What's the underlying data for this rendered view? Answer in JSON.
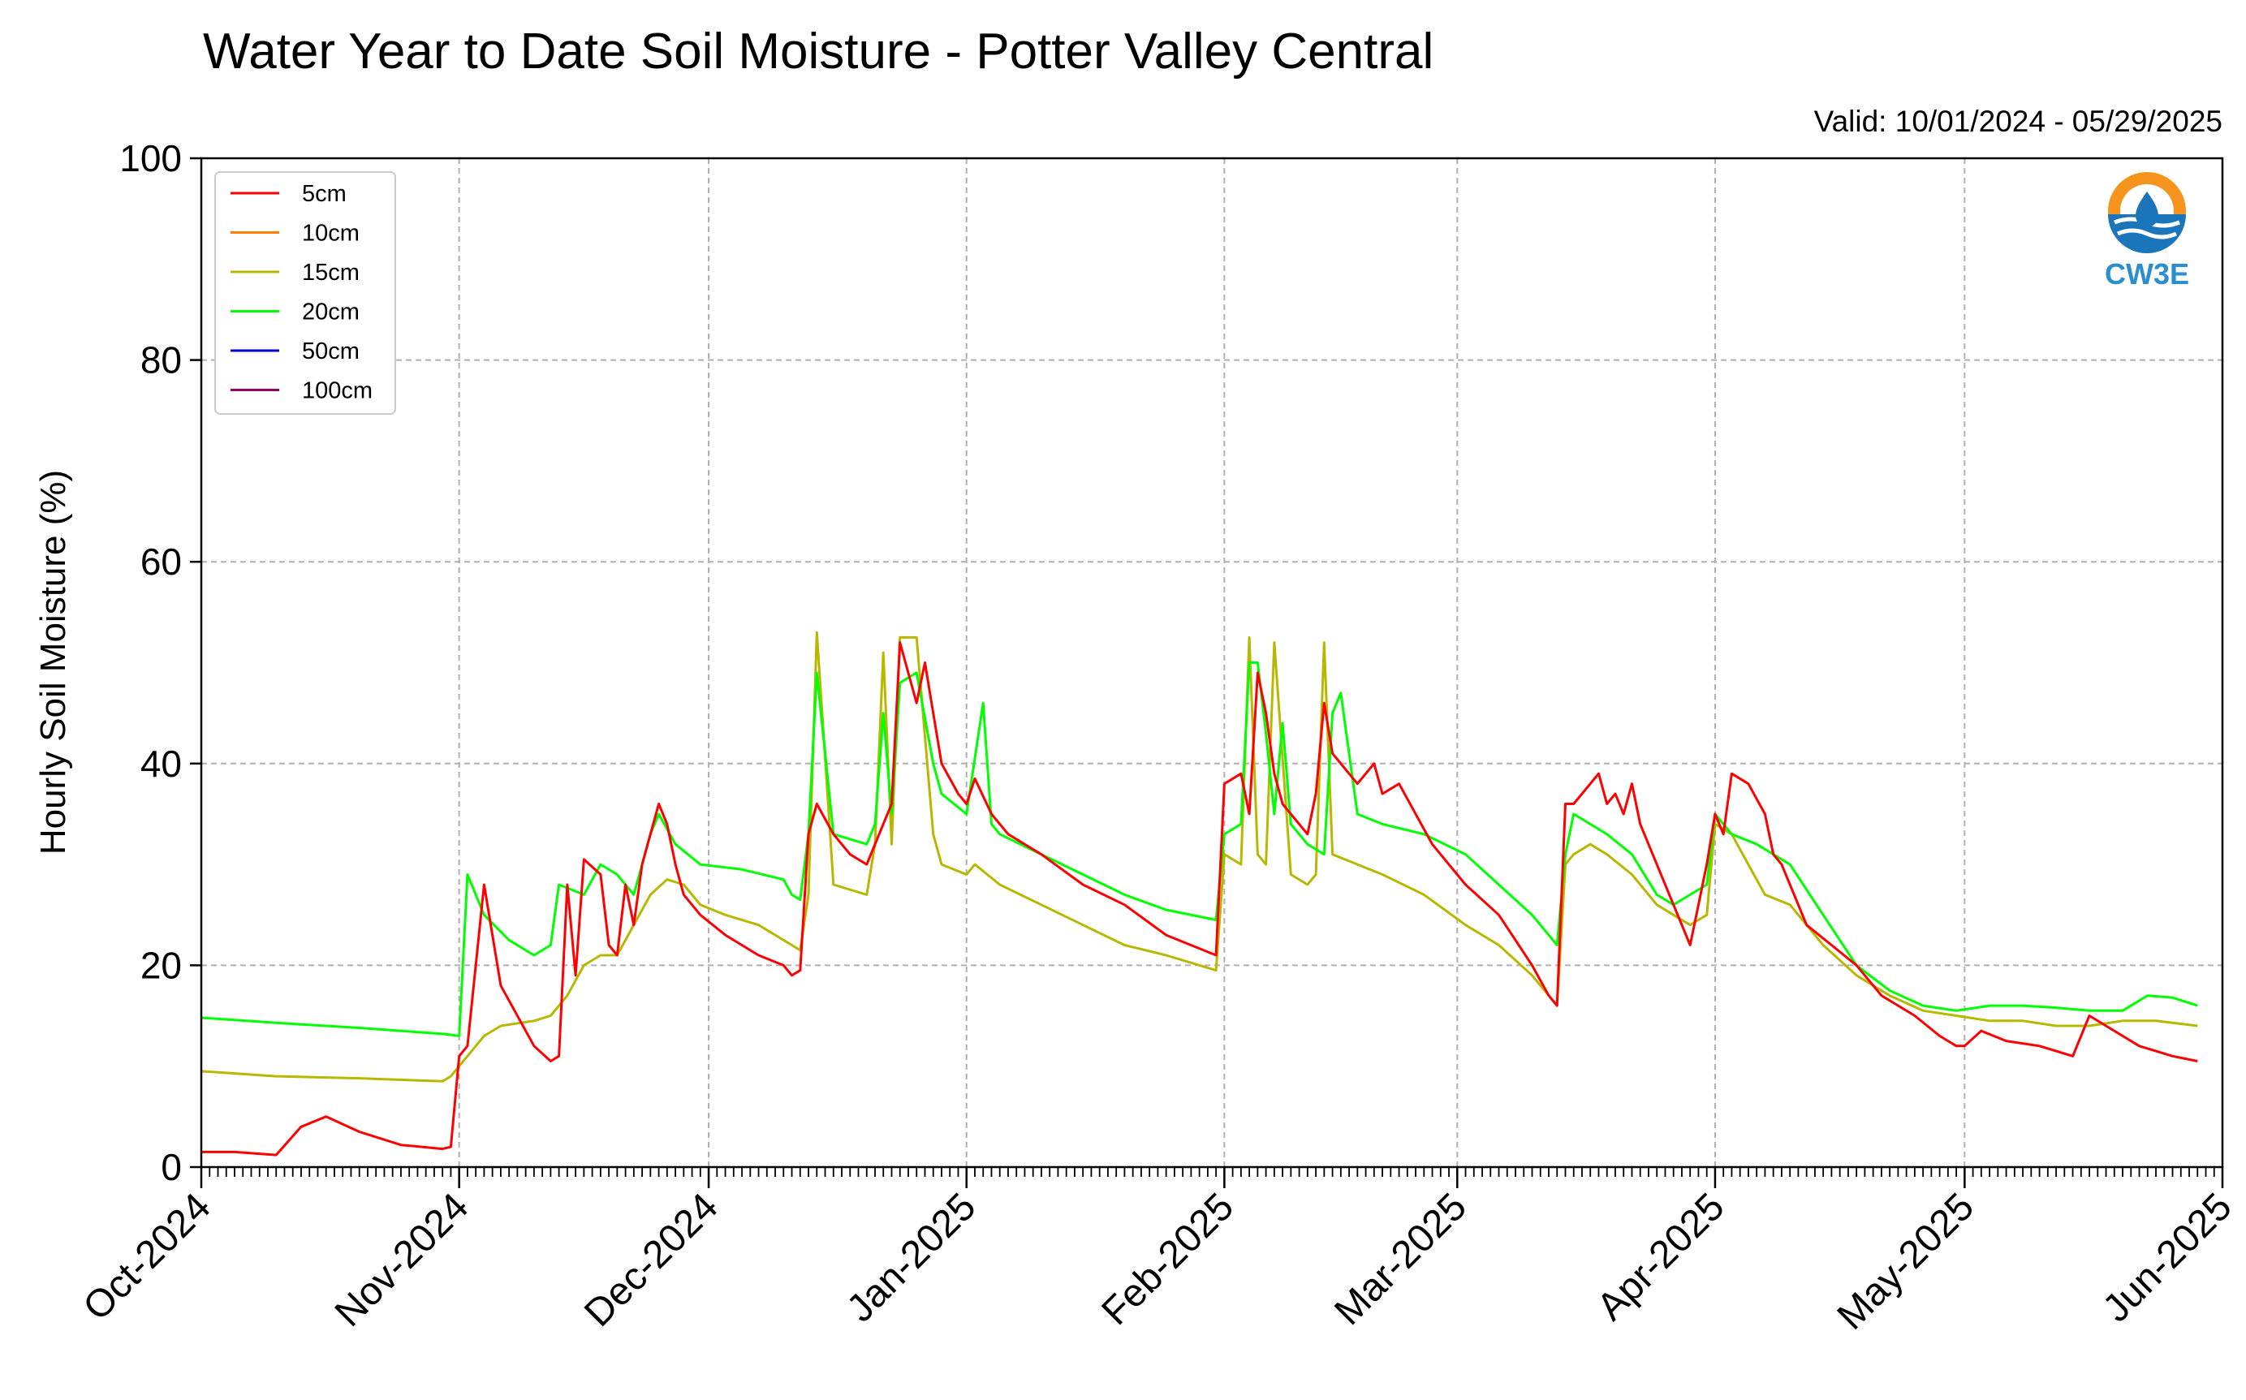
{
  "chart_data": {
    "type": "line",
    "title": "Water Year to Date Soil Moisture - Potter Valley Central",
    "subtitle": "Valid: 10/01/2024 - 05/29/2025",
    "xlabel": "",
    "ylabel": "Hourly Soil Moisture (%)",
    "ylim": [
      0,
      100
    ],
    "yticks": [
      0,
      20,
      40,
      60,
      80,
      100
    ],
    "xlim": [
      "2024-10-01",
      "2025-06-01"
    ],
    "xticks": [
      "2024-10-01",
      "2024-11-01",
      "2024-12-01",
      "2025-01-01",
      "2025-02-01",
      "2025-03-01",
      "2025-04-01",
      "2025-05-01",
      "2025-06-01"
    ],
    "xtick_labels": [
      "Oct-2024",
      "Nov-2024",
      "Dec-2024",
      "Jan-2025",
      "Feb-2025",
      "Mar-2025",
      "Apr-2025",
      "May-2025",
      "Jun-2025"
    ],
    "grid": true,
    "legend_position": "top-left",
    "logo_text": "CW3E",
    "series": [
      {
        "name": "5cm",
        "color": "#ff0000",
        "x": [
          "2024-10-01",
          "2024-10-05",
          "2024-10-10",
          "2024-10-13",
          "2024-10-16",
          "2024-10-20",
          "2024-10-25",
          "2024-10-30",
          "2024-10-31",
          "2024-11-01",
          "2024-11-02",
          "2024-11-04",
          "2024-11-06",
          "2024-11-10",
          "2024-11-12",
          "2024-11-13",
          "2024-11-14",
          "2024-11-15",
          "2024-11-16",
          "2024-11-18",
          "2024-11-19",
          "2024-11-20",
          "2024-11-21",
          "2024-11-22",
          "2024-11-23",
          "2024-11-24",
          "2024-11-25",
          "2024-11-26",
          "2024-11-27",
          "2024-11-28",
          "2024-11-30",
          "2024-12-03",
          "2024-12-07",
          "2024-12-10",
          "2024-12-11",
          "2024-12-12",
          "2024-12-13",
          "2024-12-14",
          "2024-12-16",
          "2024-12-18",
          "2024-12-20",
          "2024-12-21",
          "2024-12-22",
          "2024-12-23",
          "2024-12-24",
          "2024-12-26",
          "2024-12-27",
          "2024-12-28",
          "2024-12-29",
          "2024-12-31",
          "2025-01-01",
          "2025-01-02",
          "2025-01-04",
          "2025-01-06",
          "2025-01-10",
          "2025-01-15",
          "2025-01-20",
          "2025-01-25",
          "2025-01-31",
          "2025-02-01",
          "2025-02-03",
          "2025-02-04",
          "2025-02-05",
          "2025-02-06",
          "2025-02-07",
          "2025-02-08",
          "2025-02-09",
          "2025-02-11",
          "2025-02-12",
          "2025-02-13",
          "2025-02-14",
          "2025-02-15",
          "2025-02-17",
          "2025-02-19",
          "2025-02-20",
          "2025-02-22",
          "2025-02-26",
          "2025-03-02",
          "2025-03-06",
          "2025-03-10",
          "2025-03-12",
          "2025-03-13",
          "2025-03-14",
          "2025-03-15",
          "2025-03-17",
          "2025-03-18",
          "2025-03-19",
          "2025-03-20",
          "2025-03-21",
          "2025-03-22",
          "2025-03-23",
          "2025-03-25",
          "2025-03-27",
          "2025-03-28",
          "2025-03-29",
          "2025-03-31",
          "2025-04-01",
          "2025-04-02",
          "2025-04-03",
          "2025-04-05",
          "2025-04-07",
          "2025-04-08",
          "2025-04-09",
          "2025-04-12",
          "2025-04-15",
          "2025-04-18",
          "2025-04-21",
          "2025-04-25",
          "2025-04-28",
          "2025-04-30",
          "2025-05-01",
          "2025-05-03",
          "2025-05-06",
          "2025-05-10",
          "2025-05-14",
          "2025-05-15",
          "2025-05-16",
          "2025-05-18",
          "2025-05-22",
          "2025-05-26",
          "2025-05-29"
        ],
        "y": [
          1.5,
          1.5,
          1.2,
          4,
          5,
          3.5,
          2.2,
          1.8,
          2,
          11,
          12,
          28,
          18,
          12,
          10.5,
          11,
          28,
          19,
          30.5,
          29,
          22,
          21,
          28,
          24,
          30,
          33,
          36,
          34,
          30,
          27,
          25,
          23,
          21,
          20,
          19,
          19.5,
          33,
          36,
          33,
          31,
          30,
          32,
          34,
          36,
          52,
          46,
          50,
          45,
          40,
          37,
          36,
          38.5,
          35,
          33,
          31,
          28,
          26,
          23,
          21,
          38,
          39,
          35,
          49,
          45,
          39,
          36,
          35,
          33,
          37,
          46,
          41,
          40,
          38,
          40,
          37,
          38,
          32,
          28,
          25,
          20,
          17,
          16,
          36,
          36,
          38,
          39,
          36,
          37,
          35,
          38,
          34,
          30,
          26,
          24,
          22,
          30,
          35,
          33,
          39,
          38,
          35,
          31,
          30,
          24,
          22,
          20,
          17,
          15,
          13,
          12,
          12,
          13.5,
          12.5,
          12,
          11,
          13,
          15,
          14,
          12,
          11,
          10.5
        ]
      },
      {
        "name": "10cm",
        "color": "#ff8000",
        "x": [],
        "y": []
      },
      {
        "name": "15cm",
        "color": "#b8b800",
        "x": [
          "2024-10-01",
          "2024-10-10",
          "2024-10-20",
          "2024-10-30",
          "2024-10-31",
          "2024-11-02",
          "2024-11-04",
          "2024-11-06",
          "2024-11-10",
          "2024-11-12",
          "2024-11-14",
          "2024-11-16",
          "2024-11-18",
          "2024-11-20",
          "2024-11-22",
          "2024-11-24",
          "2024-11-26",
          "2024-11-28",
          "2024-11-30",
          "2024-12-03",
          "2024-12-07",
          "2024-12-10",
          "2024-12-11",
          "2024-12-12",
          "2024-12-13",
          "2024-12-14",
          "2024-12-16",
          "2024-12-20",
          "2024-12-21",
          "2024-12-22",
          "2024-12-23",
          "2024-12-24",
          "2024-12-26",
          "2024-12-28",
          "2024-12-29",
          "2025-01-01",
          "2025-01-02",
          "2025-01-05",
          "2025-01-10",
          "2025-01-15",
          "2025-01-20",
          "2025-01-25",
          "2025-01-31",
          "2025-02-01",
          "2025-02-03",
          "2025-02-04",
          "2025-02-05",
          "2025-02-06",
          "2025-02-07",
          "2025-02-09",
          "2025-02-11",
          "2025-02-12",
          "2025-02-13",
          "2025-02-14",
          "2025-02-17",
          "2025-02-20",
          "2025-02-25",
          "2025-03-02",
          "2025-03-06",
          "2025-03-10",
          "2025-03-12",
          "2025-03-13",
          "2025-03-14",
          "2025-03-15",
          "2025-03-17",
          "2025-03-19",
          "2025-03-22",
          "2025-03-25",
          "2025-03-27",
          "2025-03-29",
          "2025-03-31",
          "2025-04-01",
          "2025-04-03",
          "2025-04-05",
          "2025-04-07",
          "2025-04-10",
          "2025-04-14",
          "2025-04-18",
          "2025-04-22",
          "2025-04-26",
          "2025-04-30",
          "2025-05-04",
          "2025-05-08",
          "2025-05-12",
          "2025-05-16",
          "2025-05-20",
          "2025-05-24",
          "2025-05-29"
        ],
        "y": [
          9.5,
          9,
          8.8,
          8.5,
          9,
          11,
          13,
          14,
          14.5,
          15,
          17,
          20,
          21,
          21,
          24,
          27,
          28.5,
          28,
          26,
          25,
          24,
          22.5,
          22,
          21.5,
          27,
          53,
          28,
          27,
          32,
          51,
          32,
          52.5,
          52.5,
          33,
          30,
          29,
          30,
          28,
          26,
          24,
          22,
          21,
          19.5,
          31,
          30,
          52.5,
          31,
          30,
          52,
          29,
          28,
          29,
          52,
          31,
          30,
          29,
          27,
          24,
          22,
          19,
          17,
          16,
          30,
          31,
          32,
          31,
          29,
          26,
          25,
          24,
          25,
          34,
          33,
          30,
          27,
          26,
          22,
          19,
          17,
          15.5,
          15,
          14.5,
          14.5,
          14,
          14,
          14.5,
          14.5,
          14
        ]
      },
      {
        "name": "20cm",
        "color": "#00ff00",
        "x": [
          "2024-10-01",
          "2024-10-10",
          "2024-10-20",
          "2024-10-30",
          "2024-11-01",
          "2024-11-02",
          "2024-11-04",
          "2024-11-07",
          "2024-11-10",
          "2024-11-12",
          "2024-11-13",
          "2024-11-16",
          "2024-11-18",
          "2024-11-20",
          "2024-11-21",
          "2024-11-22",
          "2024-11-24",
          "2024-11-25",
          "2024-11-27",
          "2024-11-30",
          "2024-12-05",
          "2024-12-10",
          "2024-12-11",
          "2024-12-12",
          "2024-12-13",
          "2024-12-14",
          "2024-12-16",
          "2024-12-20",
          "2024-12-21",
          "2024-12-22",
          "2024-12-23",
          "2024-12-24",
          "2024-12-26",
          "2024-12-28",
          "2024-12-29",
          "2025-01-01",
          "2025-01-03",
          "2025-01-04",
          "2025-01-05",
          "2025-01-10",
          "2025-01-15",
          "2025-01-20",
          "2025-01-25",
          "2025-01-31",
          "2025-02-01",
          "2025-02-03",
          "2025-02-04",
          "2025-02-05",
          "2025-02-06",
          "2025-02-07",
          "2025-02-08",
          "2025-02-09",
          "2025-02-11",
          "2025-02-13",
          "2025-02-14",
          "2025-02-15",
          "2025-02-17",
          "2025-02-20",
          "2025-02-25",
          "2025-03-02",
          "2025-03-06",
          "2025-03-10",
          "2025-03-12",
          "2025-03-13",
          "2025-03-14",
          "2025-03-15",
          "2025-03-17",
          "2025-03-19",
          "2025-03-22",
          "2025-03-25",
          "2025-03-27",
          "2025-03-29",
          "2025-03-31",
          "2025-04-01",
          "2025-04-03",
          "2025-04-06",
          "2025-04-10",
          "2025-04-14",
          "2025-04-18",
          "2025-04-22",
          "2025-04-26",
          "2025-04-30",
          "2025-05-04",
          "2025-05-08",
          "2025-05-12",
          "2025-05-16",
          "2025-05-20",
          "2025-05-23",
          "2025-05-26",
          "2025-05-29"
        ],
        "y": [
          14.8,
          14.3,
          13.8,
          13.2,
          13,
          29,
          25,
          22.5,
          21,
          22,
          28,
          27,
          30,
          29,
          28,
          27,
          33,
          35,
          32,
          30,
          29.5,
          28.5,
          27,
          26.5,
          33,
          49,
          33,
          32,
          34,
          45,
          35,
          48,
          49,
          40,
          37,
          35,
          46,
          34,
          33,
          31,
          29,
          27,
          25.5,
          24.5,
          33,
          34,
          50,
          50,
          43,
          35,
          44,
          34,
          32,
          31,
          45,
          47,
          35,
          34,
          33,
          31,
          28,
          25,
          23,
          22,
          31,
          35,
          34,
          33,
          31,
          27,
          26,
          27,
          28,
          35,
          33,
          32,
          30,
          25,
          20,
          17.5,
          16,
          15.5,
          16,
          16,
          15.8,
          15.5,
          15.5,
          17,
          16.8,
          16
        ]
      },
      {
        "name": "50cm",
        "color": "#0000cc",
        "x": [],
        "y": []
      },
      {
        "name": "100cm",
        "color": "#990066",
        "x": [],
        "y": []
      }
    ]
  }
}
